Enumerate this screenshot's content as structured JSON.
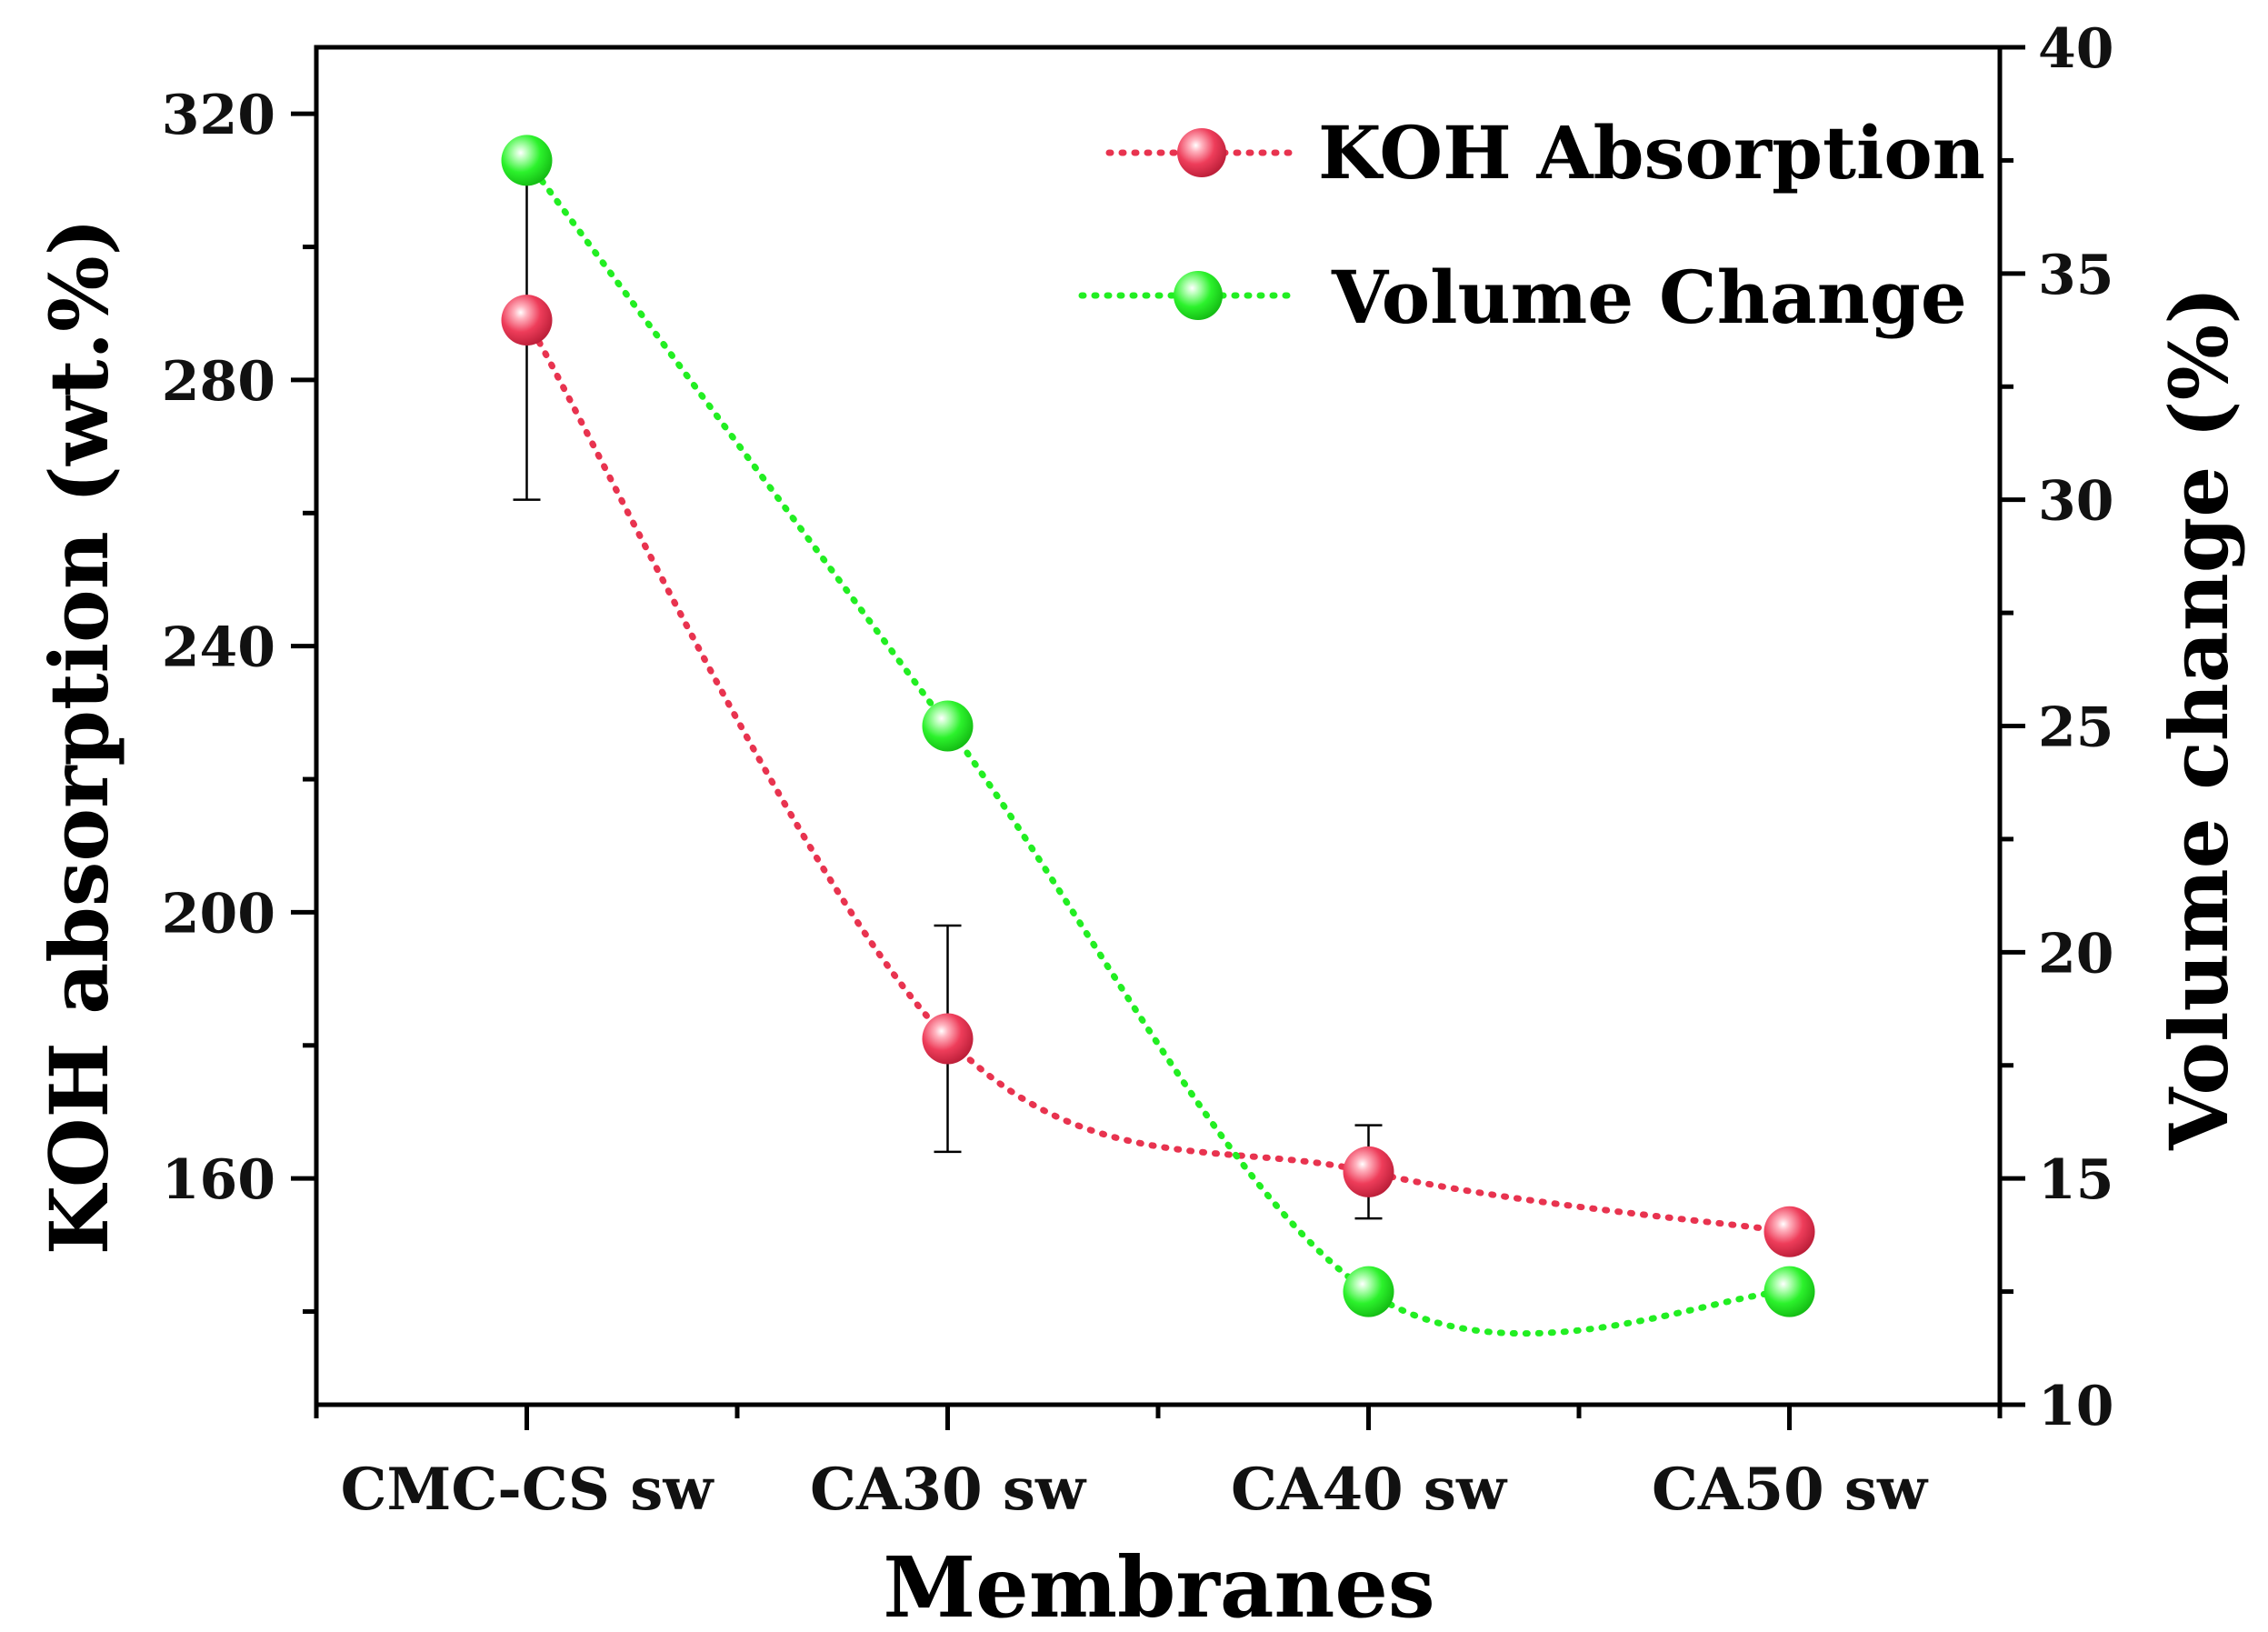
{
  "chart_data": {
    "type": "line",
    "categories": [
      "CMC-CS sw",
      "CA30 sw",
      "CA40 sw",
      "CA50 sw"
    ],
    "xlabel": "Membranes",
    "ylabel_left": "KOH absorption (wt.%)",
    "ylabel_right": "Volume change (%)",
    "ylim_left": [
      126,
      330
    ],
    "yticks_left": [
      160,
      200,
      240,
      280,
      320
    ],
    "ylim_right": [
      10,
      40
    ],
    "yticks_right": [
      10,
      15,
      20,
      25,
      30,
      35,
      40
    ],
    "grid": false,
    "legend_position": "top-right",
    "series": [
      {
        "name": "KOH Absorption",
        "axis": "left",
        "color": "#e8334f",
        "values": [
          289,
          181,
          161,
          152
        ],
        "error": [
          27,
          17,
          7,
          2
        ]
      },
      {
        "name": "Volume Change",
        "axis": "right",
        "color": "#22ee22",
        "values": [
          37.5,
          25,
          12.5,
          12.5
        ]
      }
    ]
  }
}
